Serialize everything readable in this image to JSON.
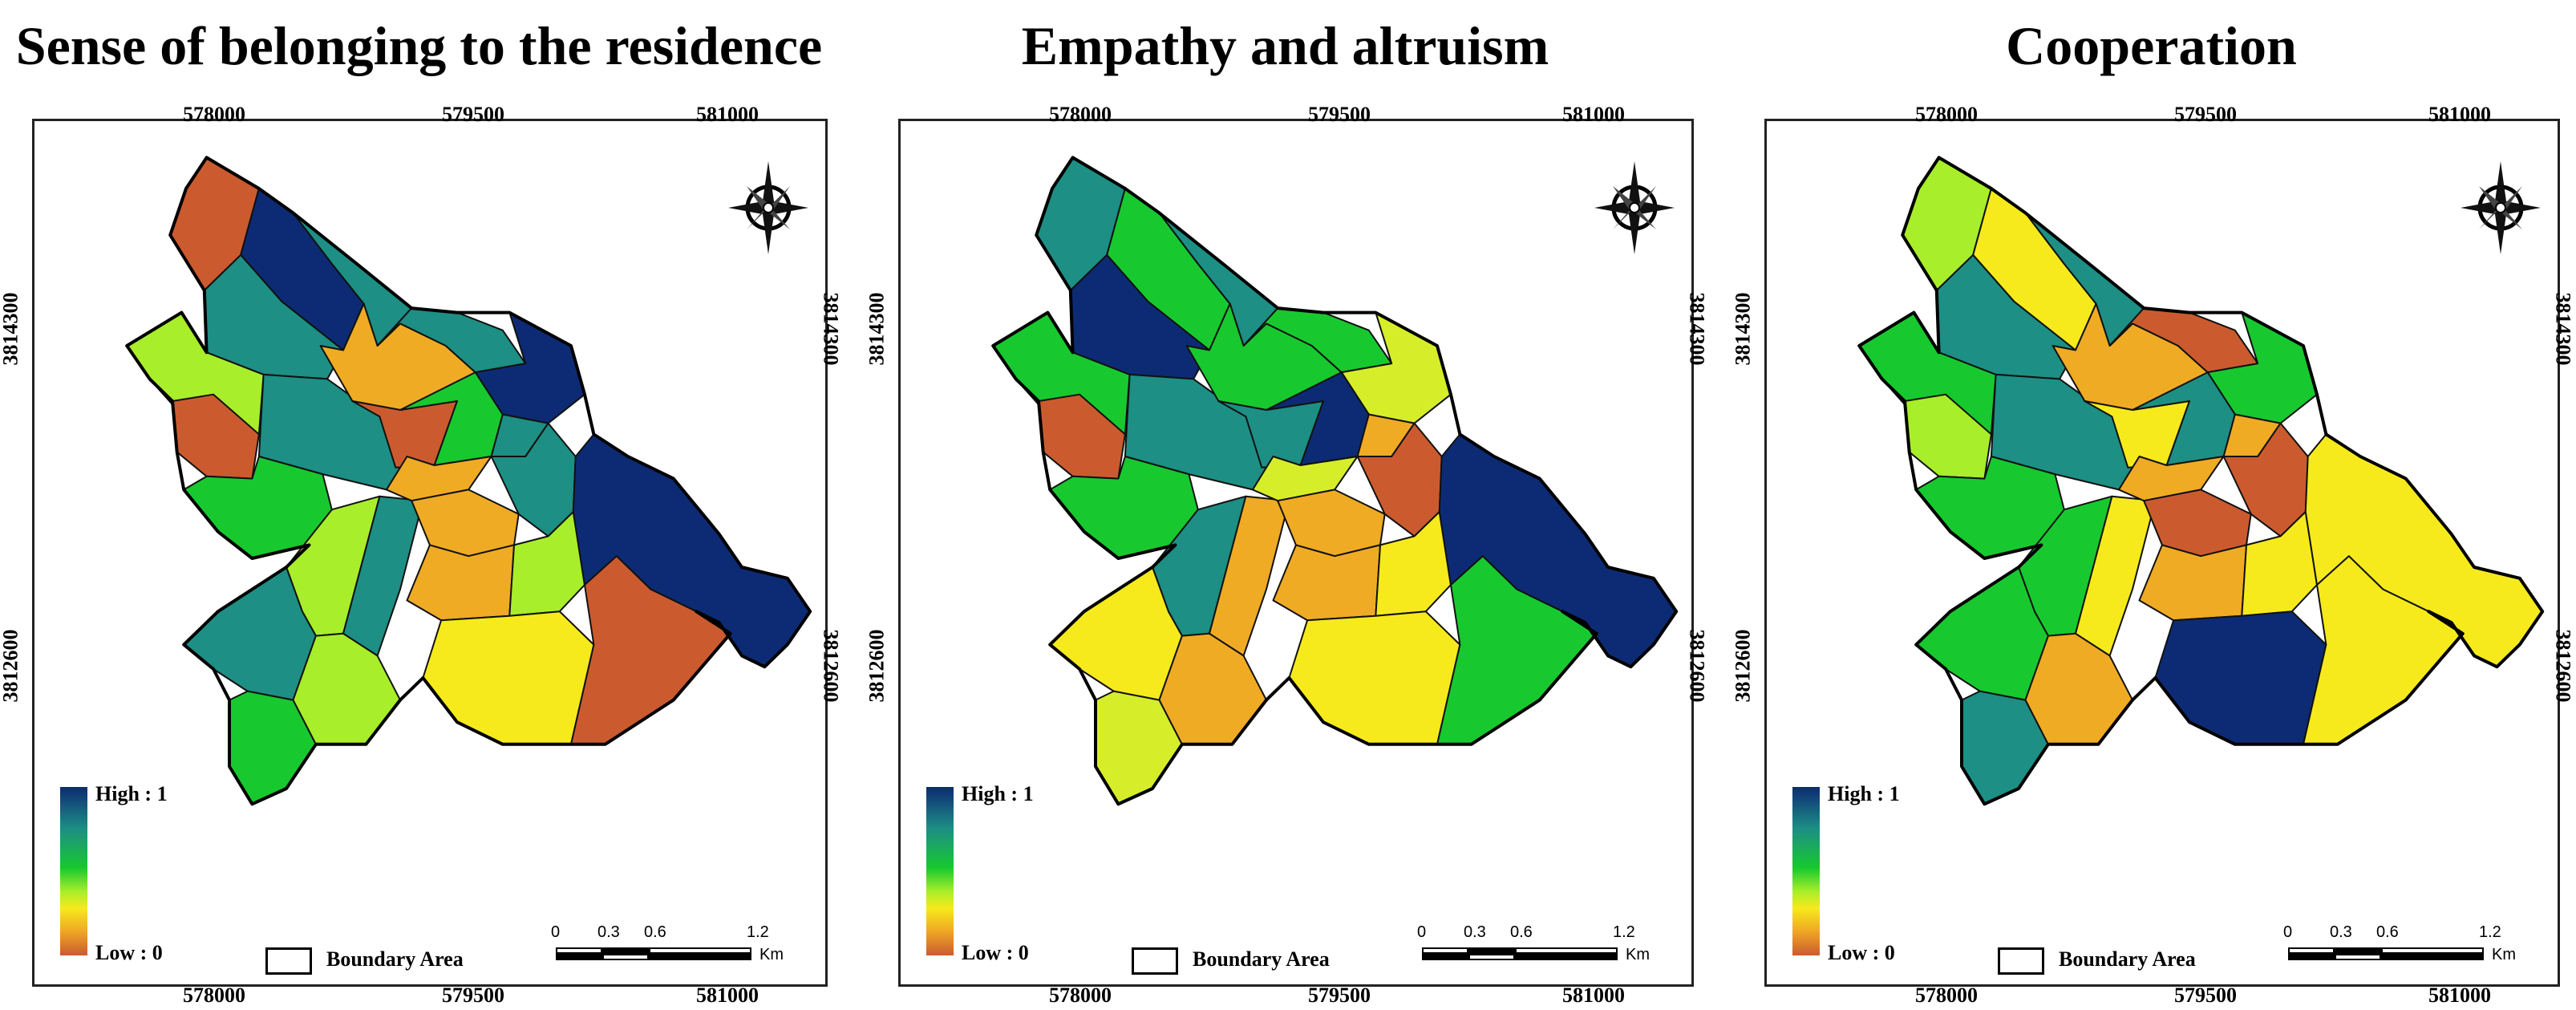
{
  "panels": [
    {
      "title": "Sense of belonging to the residence",
      "colors": [
        "#cb5b2f",
        "#0d2b74",
        "#1d8f84",
        "#1d8f84",
        "#a8ee2a",
        "#cb5b2f",
        "#1d8f84",
        "#17c92f",
        "#f0ab24",
        "#1d8f84",
        "#cb5b2f",
        "#0d2b74",
        "#17c92f",
        "#1d8f84",
        "#a8ee2a",
        "#1d8f84",
        "#f0ab24",
        "#1d8f84",
        "#f0ab24",
        "#f0ab24",
        "#a8ee2a",
        "#f6ea1c",
        "#1d8f84",
        "#0d2b74",
        "#cb5b2f",
        "#17c92f",
        "#a8ee2a"
      ]
    },
    {
      "title": "Empathy and altruism",
      "colors": [
        "#1d8f84",
        "#17c92f",
        "#1d8f84",
        "#0d2b74",
        "#17c92f",
        "#cb5b2f",
        "#1d8f84",
        "#17c92f",
        "#17c92f",
        "#17c92f",
        "#1d8f84",
        "#d6ee2a",
        "#0d2b74",
        "#f0ab24",
        "#1d8f84",
        "#f0ab24",
        "#d6ee2a",
        "#cb5b2f",
        "#f0ab24",
        "#f0ab24",
        "#f6ea1c",
        "#f6ea1c",
        "#f6ea1c",
        "#0d2b74",
        "#17c92f",
        "#d6ee2a",
        "#f0ab24"
      ]
    },
    {
      "title": "Cooperation",
      "colors": [
        "#a8ee2a",
        "#f6ea1c",
        "#1d8f84",
        "#1d8f84",
        "#17c92f",
        "#a8ee2a",
        "#1d8f84",
        "#17c92f",
        "#f0ab24",
        "#cb5b2f",
        "#f6ea1c",
        "#17c92f",
        "#1d8f84",
        "#f0ab24",
        "#17c92f",
        "#f6ea1c",
        "#f0ab24",
        "#cb5b2f",
        "#cb5b2f",
        "#f0ab24",
        "#f6ea1c",
        "#0d2b74",
        "#17c92f",
        "#f6ea1c",
        "#f6ea1c",
        "#1d8f84",
        "#f0ab24"
      ]
    }
  ],
  "x_ticks": [
    "578000",
    "579500",
    "581000"
  ],
  "y_ticks": [
    "3814300",
    "3812600"
  ],
  "legend": {
    "high": "High : 1",
    "low": "Low : 0"
  },
  "boundary_label": "Boundary Area",
  "scale": {
    "labels": [
      "0",
      "0.3",
      "0.6",
      "1.2"
    ],
    "unit": "Km"
  },
  "palette": {
    "high": "#0d2b74",
    "mid": "#17c92f",
    "low": "#cb5b2f"
  },
  "north_arrow_icon": "compass-rose-icon"
}
